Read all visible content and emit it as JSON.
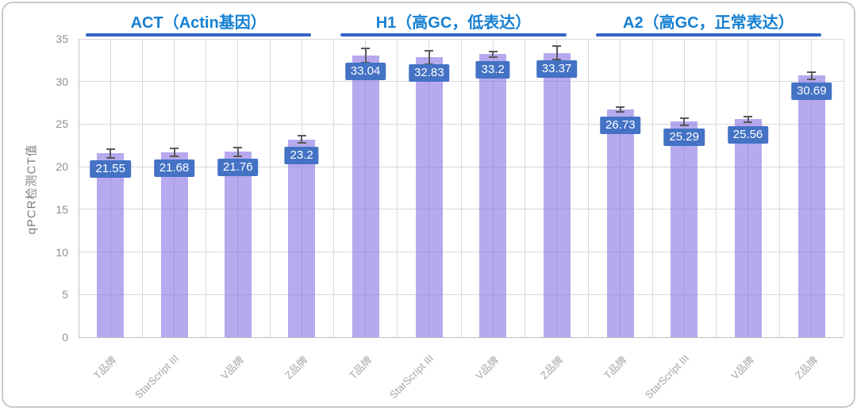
{
  "chart_data": {
    "type": "bar",
    "title": "",
    "ylabel": "qPCR检测CT值",
    "xlabel": "",
    "ylim": [
      0,
      35
    ],
    "yticks": [
      0,
      5,
      10,
      15,
      20,
      25,
      30,
      35
    ],
    "grid": "both",
    "legend": "none",
    "error_bars": true,
    "groups": [
      {
        "title": "ACT（Actin基因）",
        "categories": [
          "T品牌",
          "StarScript III",
          "V品牌",
          "Z品牌"
        ],
        "values": [
          21.55,
          21.68,
          21.76,
          23.2
        ],
        "errors": [
          0.55,
          0.5,
          0.5,
          0.4
        ],
        "value_labels": [
          "21.55",
          "21.68",
          "21.76",
          "23.2"
        ]
      },
      {
        "title": "H1（高GC，低表达）",
        "categories": [
          "T品牌",
          "StarScript III",
          "V品牌",
          "Z品牌"
        ],
        "values": [
          33.04,
          32.83,
          33.2,
          33.37
        ],
        "errors": [
          0.85,
          0.8,
          0.3,
          0.8
        ],
        "value_labels": [
          "33.04",
          "32.83",
          "33.2",
          "33.37"
        ]
      },
      {
        "title": "A2（高GC，正常表达）",
        "categories": [
          "T品牌",
          "StarScript III",
          "V品牌",
          "Z品牌"
        ],
        "values": [
          26.73,
          25.29,
          25.56,
          30.69
        ],
        "errors": [
          0.3,
          0.4,
          0.3,
          0.4
        ],
        "value_labels": [
          "26.73",
          "25.29",
          "25.56",
          "30.69"
        ]
      }
    ]
  },
  "colors": {
    "bar_fill": "rgba(124,99,224,0.55)",
    "value_label_bg": "#4472c4",
    "value_label_text": "#ffffff",
    "group_title_text": "#1580d2",
    "group_underline": "#3565c4",
    "gridline": "#d9d9d9",
    "axis_line": "#bfbfbf",
    "error_bar": "#595959",
    "tick_text": "#8f8f8f",
    "x_tick_text": "#a6a6a6"
  }
}
